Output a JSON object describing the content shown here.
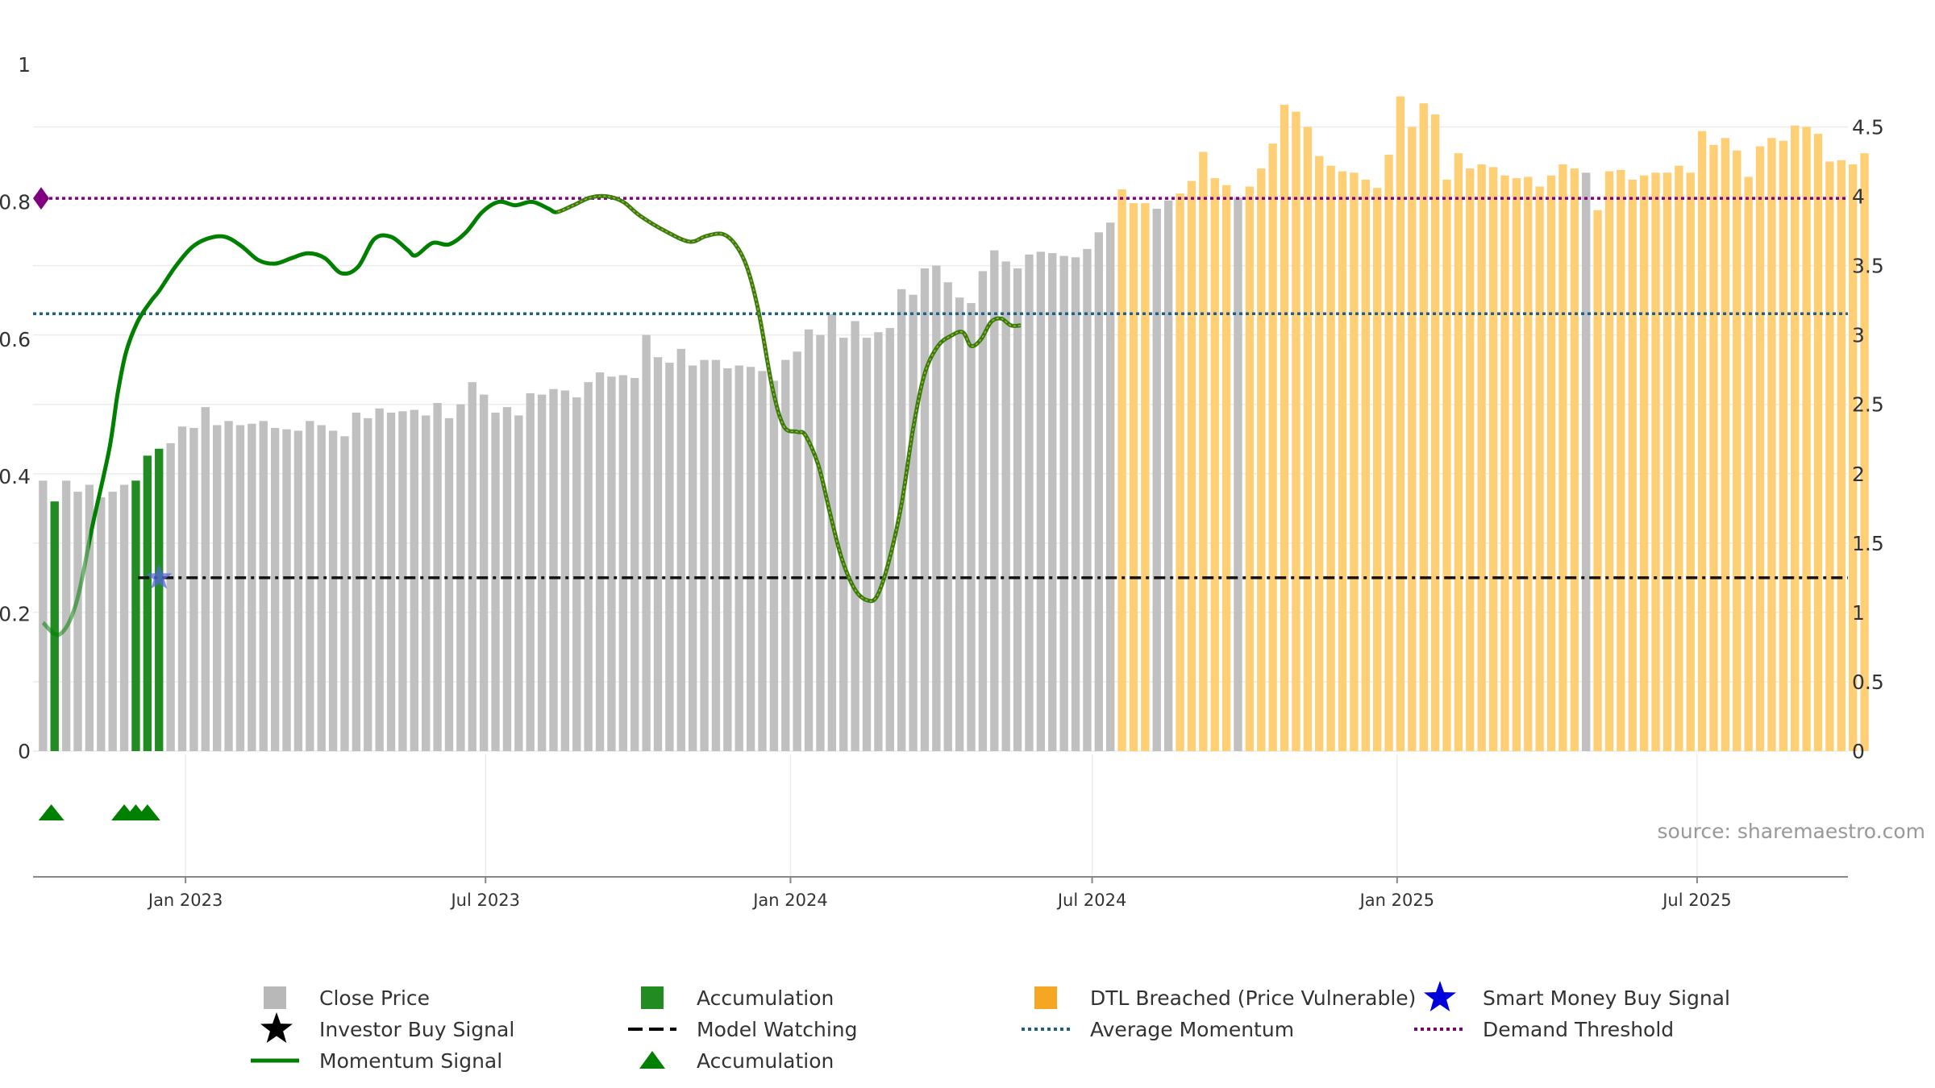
{
  "chart_data": {
    "type": "bar",
    "source": "source: sharemaestro.com",
    "left_axis": {
      "range": [
        0,
        1
      ],
      "ticks": [
        "0",
        "0.2",
        "0.4",
        "0.6",
        "0.8",
        "1"
      ]
    },
    "right_axis": {
      "range": [
        0,
        4.95
      ],
      "ticks": [
        "0",
        "0.5",
        "1",
        "1.5",
        "2",
        "2.5",
        "3",
        "3.5",
        "4",
        "4.5"
      ]
    },
    "x_axis": {
      "start": "2022-10-01",
      "end": "2025-09-30",
      "ticks": [
        {
          "label": "Jan 2023",
          "date": "2023-01-01"
        },
        {
          "label": "Jul 2023",
          "date": "2023-07-01"
        },
        {
          "label": "Jan 2024",
          "date": "2024-01-01"
        },
        {
          "label": "Jul 2024",
          "date": "2024-07-01"
        },
        {
          "label": "Jan 2025",
          "date": "2025-01-01"
        },
        {
          "label": "Jul 2025",
          "date": "2025-07-01"
        }
      ]
    },
    "bars_start": "2022-10-07",
    "bars_step_days": 7,
    "close_price": [
      1.95,
      1.8,
      1.95,
      1.87,
      1.92,
      1.83,
      1.87,
      1.92,
      1.95,
      2.13,
      2.18,
      2.22,
      2.34,
      2.33,
      2.48,
      2.35,
      2.38,
      2.35,
      2.36,
      2.38,
      2.33,
      2.32,
      2.31,
      2.38,
      2.35,
      2.31,
      2.27,
      2.44,
      2.4,
      2.47,
      2.44,
      2.45,
      2.46,
      2.42,
      2.51,
      2.4,
      2.5,
      2.66,
      2.57,
      2.44,
      2.48,
      2.42,
      2.58,
      2.57,
      2.61,
      2.6,
      2.55,
      2.66,
      2.73,
      2.7,
      2.71,
      2.69,
      3.0,
      2.84,
      2.8,
      2.9,
      2.78,
      2.82,
      2.82,
      2.76,
      2.78,
      2.77,
      2.74,
      2.67,
      2.82,
      2.88,
      3.04,
      3.0,
      3.15,
      2.98,
      3.1,
      2.98,
      3.02,
      3.05,
      3.33,
      3.29,
      3.48,
      3.5,
      3.38,
      3.27,
      3.23,
      3.46,
      3.61,
      3.53,
      3.48,
      3.58,
      3.6,
      3.59,
      3.57,
      3.56,
      3.62,
      3.74,
      3.81,
      4.05,
      3.95,
      3.95,
      3.91,
      3.97,
      4.02,
      4.11,
      4.32,
      4.13,
      4.08,
      3.99,
      4.07,
      4.2,
      4.38,
      4.66,
      4.61,
      4.5,
      4.29,
      4.22,
      4.18,
      4.17,
      4.12,
      4.06,
      4.3,
      4.72,
      4.5,
      4.67,
      4.59,
      4.12,
      4.31,
      4.2,
      4.23,
      4.21,
      4.15,
      4.13,
      4.14,
      4.07,
      4.15,
      4.23,
      4.2,
      4.17,
      3.9,
      4.18,
      4.19,
      4.12,
      4.15,
      4.17,
      4.17,
      4.22,
      4.17,
      4.47,
      4.37,
      4.42,
      4.33,
      4.14,
      4.36,
      4.42,
      4.4,
      4.51,
      4.5,
      4.45,
      4.25,
      4.26,
      4.23,
      4.31
    ],
    "accumulation_bars": [
      1,
      8,
      9,
      10
    ],
    "gray_overrides": [
      96,
      97,
      103,
      133
    ],
    "dtl_breached_from": 93,
    "momentum_signal": [
      [
        0,
        0.187
      ],
      [
        10,
        0.17
      ],
      [
        20,
        0.215
      ],
      [
        30,
        0.33
      ],
      [
        40,
        0.44
      ],
      [
        45,
        0.52
      ],
      [
        50,
        0.58
      ],
      [
        57,
        0.625
      ],
      [
        65,
        0.655
      ],
      [
        70,
        0.67
      ],
      [
        80,
        0.706
      ],
      [
        90,
        0.734
      ],
      [
        100,
        0.747
      ],
      [
        110,
        0.749
      ],
      [
        120,
        0.735
      ],
      [
        130,
        0.715
      ],
      [
        140,
        0.71
      ],
      [
        150,
        0.718
      ],
      [
        160,
        0.725
      ],
      [
        170,
        0.718
      ],
      [
        180,
        0.696
      ],
      [
        190,
        0.705
      ],
      [
        200,
        0.746
      ],
      [
        210,
        0.749
      ],
      [
        220,
        0.73
      ],
      [
        225,
        0.722
      ],
      [
        235,
        0.74
      ],
      [
        245,
        0.738
      ],
      [
        255,
        0.755
      ],
      [
        265,
        0.785
      ],
      [
        275,
        0.8
      ],
      [
        285,
        0.795
      ],
      [
        295,
        0.8
      ],
      [
        305,
        0.79
      ],
      [
        310,
        0.785
      ],
      [
        320,
        0.795
      ],
      [
        330,
        0.806
      ],
      [
        340,
        0.808
      ],
      [
        350,
        0.8
      ],
      [
        360,
        0.78
      ],
      [
        375,
        0.758
      ],
      [
        390,
        0.742
      ],
      [
        400,
        0.75
      ],
      [
        410,
        0.753
      ],
      [
        418,
        0.737
      ],
      [
        425,
        0.703
      ],
      [
        432,
        0.637
      ],
      [
        440,
        0.53
      ],
      [
        447,
        0.473
      ],
      [
        455,
        0.465
      ],
      [
        460,
        0.46
      ],
      [
        468,
        0.415
      ],
      [
        475,
        0.345
      ],
      [
        482,
        0.28
      ],
      [
        490,
        0.235
      ],
      [
        497,
        0.22
      ],
      [
        503,
        0.225
      ],
      [
        510,
        0.273
      ],
      [
        518,
        0.36
      ],
      [
        525,
        0.47
      ],
      [
        532,
        0.55
      ],
      [
        540,
        0.59
      ],
      [
        548,
        0.605
      ],
      [
        555,
        0.61
      ],
      [
        560,
        0.59
      ],
      [
        566,
        0.6
      ],
      [
        572,
        0.625
      ],
      [
        578,
        0.63
      ],
      [
        584,
        0.62
      ],
      [
        590,
        0.62
      ]
    ],
    "momentum_start": "2022-10-07",
    "momentum_weak_until_day": 28,
    "momentum_vulnerable_from_day": 310,
    "average_momentum": 0.637,
    "demand_threshold": 0.805,
    "model_watching": 1.25,
    "smart_money_buy_signal": {
      "date": "2022-12-16",
      "value": 1.25
    },
    "demand_marker": {
      "value": 0.805
    },
    "accumulation_triangles": [
      "2022-10-12",
      "2022-11-25",
      "2022-12-02",
      "2022-12-09"
    ],
    "colors": {
      "close_price": "#c0c0c0",
      "accumulation": "#228b22",
      "dtl_breached": "#ffcf75",
      "momentum": "#008000",
      "momentum_vulnerable": "#5c9a1f",
      "average_momentum": "#1f5f8b",
      "demand_threshold": "#800080",
      "model_watching": "#111111",
      "smart_money": "#0000dd",
      "grid": "#ececec",
      "axis": "#888888"
    },
    "legend": [
      {
        "label": "Close Price",
        "symbol": "square",
        "color": "#b8b8b8"
      },
      {
        "label": "Accumulation",
        "symbol": "square",
        "color": "#228b22"
      },
      {
        "label": "DTL Breached (Price Vulnerable)",
        "symbol": "square",
        "color": "#f5a623"
      },
      {
        "label": "Smart Money Buy Signal",
        "symbol": "star",
        "color": "#0000dd"
      },
      {
        "label": "Investor Buy Signal",
        "symbol": "star",
        "color": "#000000"
      },
      {
        "label": "Model Watching",
        "symbol": "dash",
        "color": "#000000"
      },
      {
        "label": "Average Momentum",
        "symbol": "dot",
        "color": "#1f5f8b"
      },
      {
        "label": "Demand Threshold",
        "symbol": "dot",
        "color": "#800080"
      },
      {
        "label": "Momentum Signal",
        "symbol": "line",
        "color": "#008000"
      },
      {
        "label": "Accumulation",
        "symbol": "triangle",
        "color": "#008000"
      }
    ]
  }
}
